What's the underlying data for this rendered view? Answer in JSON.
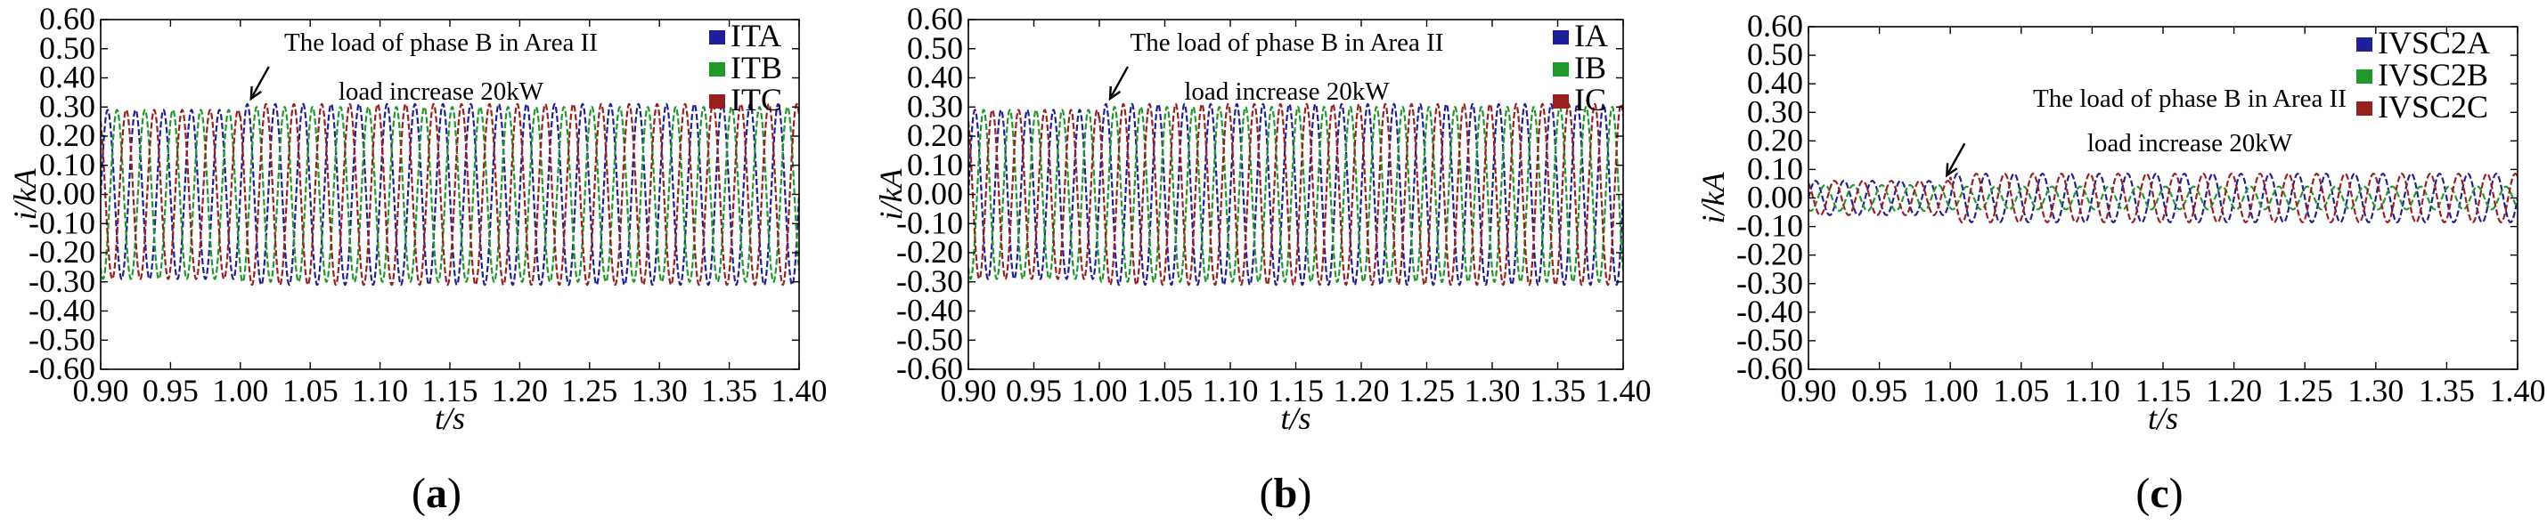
{
  "colors": {
    "phase_a": "#1f1f9a",
    "phase_b": "#1f9a2a",
    "phase_c": "#9a1f1f",
    "axis": "#000000"
  },
  "chart_data": [
    {
      "type": "line",
      "panel_label": "a",
      "xlabel": "t/s",
      "ylabel": "i/kA",
      "xlim": [
        0.9,
        1.4
      ],
      "ylim": [
        -0.6,
        0.6
      ],
      "xticks": [
        "0.90",
        "0.95",
        "1.00",
        "1.05",
        "1.10",
        "1.15",
        "1.20",
        "1.25",
        "1.30",
        "1.35",
        "1.40"
      ],
      "yticks": [
        "0.60",
        "0.50",
        "0.40",
        "0.30",
        "0.20",
        "0.10",
        "0.00",
        "-0.10",
        "-0.20",
        "-0.30",
        "-0.40",
        "-0.50",
        "-0.60"
      ],
      "grid": false,
      "legend_position": "top-right",
      "annotation": {
        "line1": "The load of phase B in Area II",
        "line2": "load increase 20kW",
        "arrow_target": [
          1.0,
          0.31
        ]
      },
      "waveform": {
        "frequency_hz": 50,
        "event_time": 1.0,
        "x_range": [
          0.9,
          1.4
        ]
      },
      "series": [
        {
          "name": "ITA",
          "color_key": "phase_a",
          "phase_deg": 0,
          "amplitude_before": 0.29,
          "amplitude_after": 0.31
        },
        {
          "name": "ITB",
          "color_key": "phase_b",
          "phase_deg": -120,
          "amplitude_before": 0.29,
          "amplitude_after": 0.3
        },
        {
          "name": "ITC",
          "color_key": "phase_c",
          "phase_deg": 120,
          "amplitude_before": 0.29,
          "amplitude_after": 0.31
        }
      ]
    },
    {
      "type": "line",
      "panel_label": "b",
      "xlabel": "t/s",
      "ylabel": "i/kA",
      "xlim": [
        0.9,
        1.4
      ],
      "ylim": [
        -0.6,
        0.6
      ],
      "xticks": [
        "0.90",
        "0.95",
        "1.00",
        "1.05",
        "1.10",
        "1.15",
        "1.20",
        "1.25",
        "1.30",
        "1.35",
        "1.40"
      ],
      "yticks": [
        "0.60",
        "0.50",
        "0.40",
        "0.30",
        "0.20",
        "0.10",
        "0.00",
        "-0.10",
        "-0.20",
        "-0.30",
        "-0.40",
        "-0.50",
        "-0.60"
      ],
      "grid": false,
      "legend_position": "top-right",
      "annotation": {
        "line1": "The load of phase B in Area II",
        "line2": "load increase 20kW",
        "arrow_target": [
          1.0,
          0.31
        ]
      },
      "waveform": {
        "frequency_hz": 50,
        "event_time": 1.0,
        "x_range": [
          0.9,
          1.4
        ]
      },
      "series": [
        {
          "name": "IA",
          "color_key": "phase_a",
          "phase_deg": 0,
          "amplitude_before": 0.29,
          "amplitude_after": 0.31
        },
        {
          "name": "IB",
          "color_key": "phase_b",
          "phase_deg": -120,
          "amplitude_before": 0.29,
          "amplitude_after": 0.3
        },
        {
          "name": "IC",
          "color_key": "phase_c",
          "phase_deg": 120,
          "amplitude_before": 0.29,
          "amplitude_after": 0.31
        }
      ]
    },
    {
      "type": "line",
      "panel_label": "c",
      "xlabel": "t/s",
      "ylabel": "i/kA",
      "xlim": [
        0.9,
        1.4
      ],
      "ylim": [
        -0.6,
        0.6
      ],
      "xticks": [
        "0.90",
        "0.95",
        "1.00",
        "1.05",
        "1.10",
        "1.15",
        "1.20",
        "1.25",
        "1.30",
        "1.35",
        "1.40"
      ],
      "yticks": [
        "0.60",
        "0.50",
        "0.40",
        "0.30",
        "0.20",
        "0.10",
        "0.00",
        "-0.10",
        "-0.20",
        "-0.30",
        "-0.40",
        "-0.50",
        "-0.60"
      ],
      "grid": false,
      "legend_position": "top-right",
      "annotation": {
        "line1": "The load of phase B in Area II",
        "line2": "load increase 20kW",
        "arrow_target": [
          0.99,
          0.06
        ]
      },
      "waveform": {
        "frequency_hz": 50,
        "event_time": 1.0,
        "x_range": [
          0.9,
          1.4
        ]
      },
      "series": [
        {
          "name": "IVSC2A",
          "color_key": "phase_a",
          "phase_deg": 0,
          "amplitude_before": 0.06,
          "amplitude_after": 0.085
        },
        {
          "name": "IVSC2B",
          "color_key": "phase_b",
          "phase_deg": -120,
          "amplitude_before": 0.045,
          "amplitude_after": 0.04
        },
        {
          "name": "IVSC2C",
          "color_key": "phase_c",
          "phase_deg": 120,
          "amplitude_before": 0.06,
          "amplitude_after": 0.085
        }
      ]
    }
  ]
}
